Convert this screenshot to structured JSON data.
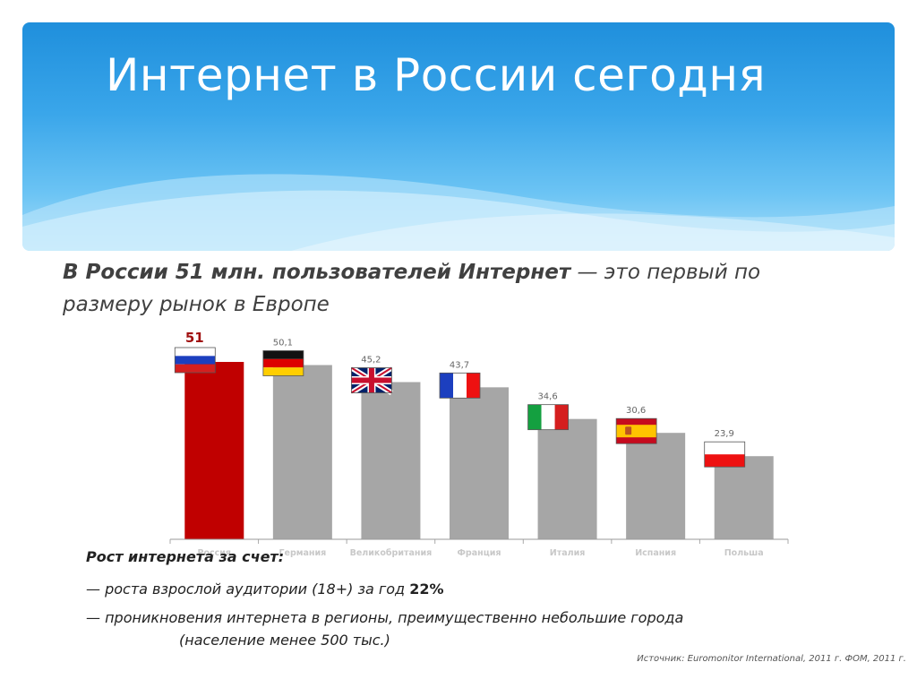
{
  "slide": {
    "title": "Интернет в России сегодня",
    "subtitle_bold": "В России 51 млн. пользователей Интернет",
    "subtitle_rest": " — это первый по размеру рынок в Европе",
    "notes_heading": "Рост интернета за счет:",
    "note1_text": "— роста взрослой аудитории (18+) за год ",
    "note1_value": "22%",
    "note2_line1": "— проникновения интернета в регионы, преимущественно небольшие города",
    "note2_line2": "(население менее 500 тыс.)",
    "source": "Источник: Euromonitor International, 2011 г. ФОМ, 2011 г."
  },
  "chart_data": {
    "type": "bar",
    "categories": [
      "Россия",
      "Германия",
      "Великобритания",
      "Франция",
      "Италия",
      "Испания",
      "Польша"
    ],
    "values": [
      51,
      50.1,
      45.2,
      43.7,
      34.6,
      30.6,
      23.9
    ],
    "value_labels": [
      "51",
      "50,1",
      "45,2",
      "43,7",
      "34,6",
      "30,6",
      "23,9"
    ],
    "flags": [
      "russia-flag",
      "germany-flag",
      "uk-flag",
      "france-flag",
      "italy-flag",
      "spain-flag",
      "poland-flag"
    ],
    "ylim": [
      0,
      51
    ],
    "grid": false,
    "colors": {
      "highlight": "#c00000",
      "bar": "#a6a6a6",
      "highlight_label": "#a01010",
      "label": "#666666"
    }
  }
}
